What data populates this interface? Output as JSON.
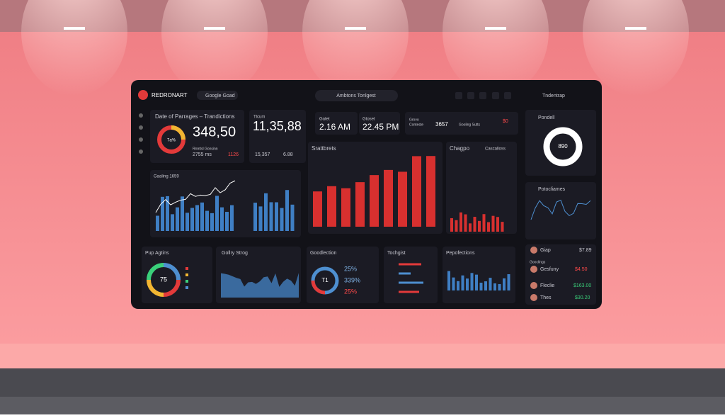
{
  "header": {
    "brand": "REDRONART",
    "search": "Google Goad",
    "tab": "Ambtons Tonlgest",
    "account": "Tndentrap"
  },
  "summary": {
    "title": "Date of Parrages – Trandictions",
    "donut": "7a%",
    "total": "348,50",
    "sub1": "Rnmtsl Gonsinn",
    "sub2": "2755 ms",
    "sub3": "1126"
  },
  "counter": {
    "label": "Tlcum",
    "value": "11,35,88",
    "sub1": "15,357",
    "sub2": "6.88"
  },
  "times": [
    {
      "label": "Gatet",
      "value": "2.16 AM"
    },
    {
      "label": "Gtoset",
      "value": "22.45 PM"
    }
  ],
  "stats": {
    "label1": "Grovo",
    "label2": "Conteste",
    "value": "3657",
    "label3": "Gooling Sutts",
    "value2": "$0"
  },
  "panels": {
    "main": "Srattbrets",
    "side": "Chagpo",
    "side_filter": "Cascalloss",
    "gaaling": "Gaaling 1659",
    "pondell": "Pondell",
    "pondell_value": "890",
    "potoc": "Potocliames"
  },
  "bottom": {
    "pup": "Pup Agtins",
    "pup_value": "75",
    "gallery": "Gollry Strog",
    "goodlection": "Goodlection",
    "good_value": "T1",
    "good_pct": [
      "25%",
      "339%",
      "25%"
    ],
    "tochgist": "Tochgist",
    "pepofections": "Pepofections"
  },
  "list": {
    "heading": "Gooclings",
    "rows": [
      {
        "name": "Giap",
        "value": "$7.89"
      },
      {
        "name": "Gesfuny",
        "value": "$4.50"
      },
      {
        "name": "Fleclie",
        "value": "$163.00"
      },
      {
        "name": "Thes",
        "value": "$30.20"
      }
    ]
  }
}
